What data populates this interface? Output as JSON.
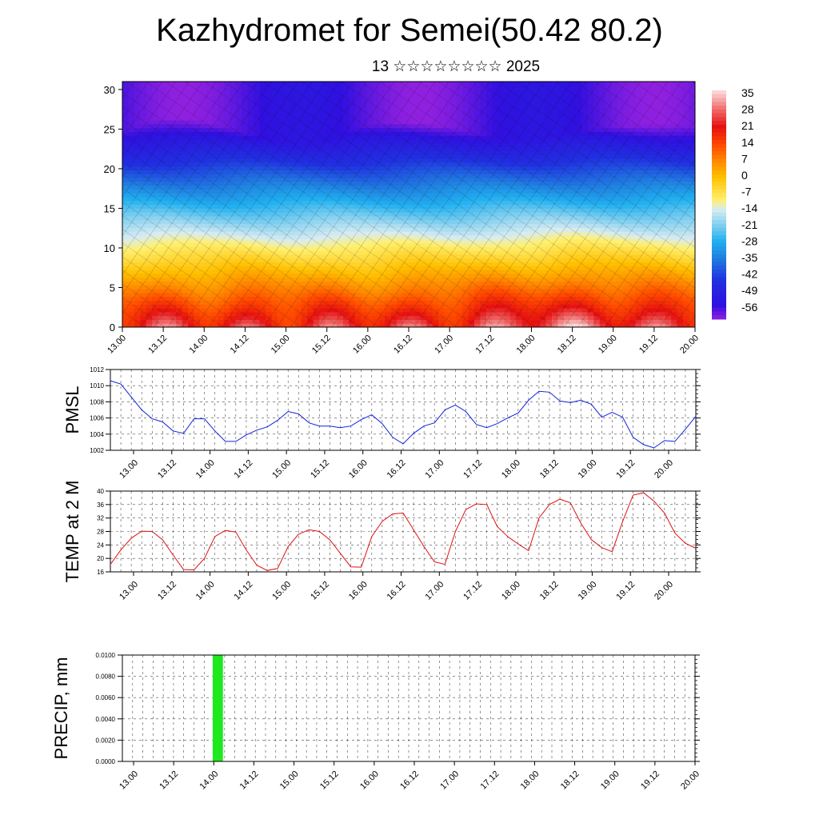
{
  "title": "Kazhydromet for Semei(50.42 80.2)",
  "subtitle": "13 ☆☆☆☆☆☆☆☆ 2025",
  "colors": {
    "pmsl_line": "#1020e0",
    "temp_line": "#e01010",
    "precip_bar": "#1ee81e"
  },
  "chart_data": [
    {
      "type": "heatmap",
      "name": "cross-section",
      "x_tick_labels": [
        "13.00",
        "13.12",
        "14.00",
        "14.12",
        "15.00",
        "15.12",
        "16.00",
        "16.12",
        "17.00",
        "17.12",
        "18.00",
        "18.12",
        "19.00",
        "19.12",
        "20.00"
      ],
      "y_ticks": [
        0,
        5,
        10,
        15,
        20,
        25,
        30
      ],
      "ylim": [
        0,
        31
      ],
      "colorbar_labels": [
        "35",
        "28",
        "21",
        "14",
        "7",
        "0",
        "-7",
        "-14",
        "-21",
        "-28",
        "-35",
        "-42",
        "-49",
        "-56"
      ],
      "colorscale": [
        {
          "v": 38,
          "c": "#fce0e0"
        },
        {
          "v": 30,
          "c": "#f07070"
        },
        {
          "v": 22,
          "c": "#e61010"
        },
        {
          "v": 14,
          "c": "#ff4a00"
        },
        {
          "v": 7,
          "c": "#ff8a00"
        },
        {
          "v": 0,
          "c": "#ffc000"
        },
        {
          "v": -10,
          "c": "#fff070"
        },
        {
          "v": -14,
          "c": "#d8ecf2"
        },
        {
          "v": -21,
          "c": "#80cff0"
        },
        {
          "v": -28,
          "c": "#20b0f0"
        },
        {
          "v": -35,
          "c": "#2080e0"
        },
        {
          "v": -45,
          "c": "#2030e0"
        },
        {
          "v": -56,
          "c": "#3010e0"
        },
        {
          "v": -62,
          "c": "#9020e0"
        }
      ]
    },
    {
      "type": "line",
      "name": "pmsl",
      "ylabel": "PMSL",
      "ylim": [
        1002,
        1012
      ],
      "y_ticks": [
        "1002",
        "1004",
        "1006",
        "1008",
        "1010",
        "1012"
      ],
      "x_tick_labels": [
        "13.00",
        "13.12",
        "14.00",
        "14.12",
        "15.00",
        "15.12",
        "16.00",
        "16.12",
        "17.00",
        "17.12",
        "18.00",
        "18.12",
        "19.00",
        "19.12",
        "20.00"
      ],
      "x": [
        0,
        3,
        6,
        9,
        12,
        15,
        18,
        21,
        24,
        27,
        30,
        33,
        36,
        39,
        42,
        45,
        48,
        51,
        54,
        57,
        60,
        63,
        66,
        69,
        72,
        75,
        78,
        81,
        84,
        87,
        90,
        93,
        96,
        99,
        102,
        105,
        108,
        111,
        114,
        117,
        120,
        123,
        126,
        129,
        132,
        135,
        138,
        141,
        144,
        147,
        150,
        153,
        156,
        159,
        162,
        165,
        168
      ],
      "values": [
        1010.6,
        1010.2,
        1008.6,
        1007.0,
        1005.9,
        1005.5,
        1004.4,
        1004.1,
        1005.9,
        1005.9,
        1004.4,
        1003.1,
        1003.1,
        1003.9,
        1004.5,
        1004.9,
        1005.7,
        1006.8,
        1006.5,
        1005.4,
        1005.0,
        1005.0,
        1004.8,
        1005.0,
        1005.8,
        1006.4,
        1005.3,
        1003.6,
        1002.8,
        1004.1,
        1005.0,
        1005.4,
        1007.0,
        1007.6,
        1006.8,
        1005.2,
        1004.8,
        1005.3,
        1006.0,
        1006.6,
        1008.2,
        1009.3,
        1009.2,
        1008.1,
        1007.9,
        1008.2,
        1007.7,
        1006.1,
        1006.7,
        1006.1,
        1003.6,
        1002.7,
        1002.3,
        1003.2,
        1003.1,
        1004.6,
        1006.2
      ]
    },
    {
      "type": "line",
      "name": "temp",
      "ylabel": "TEMP at 2 M",
      "ylim": [
        16,
        40
      ],
      "y_ticks": [
        "16",
        "20",
        "24",
        "28",
        "32",
        "36",
        "40"
      ],
      "x_tick_labels": [
        "13.00",
        "13.12",
        "14.00",
        "14.12",
        "15.00",
        "15.12",
        "16.00",
        "16.12",
        "17.00",
        "17.12",
        "18.00",
        "18.12",
        "19.00",
        "19.12",
        "20.00"
      ],
      "x": [
        0,
        3,
        6,
        9,
        12,
        15,
        18,
        21,
        24,
        27,
        30,
        33,
        36,
        39,
        42,
        45,
        48,
        51,
        54,
        57,
        60,
        63,
        66,
        69,
        72,
        75,
        78,
        81,
        84,
        87,
        90,
        93,
        96,
        99,
        102,
        105,
        108,
        111,
        114,
        117,
        120,
        123,
        126,
        129,
        132,
        135,
        138,
        141,
        144,
        147,
        150,
        153,
        156,
        159,
        162,
        165,
        168
      ],
      "values": [
        18.2,
        22.5,
        26.0,
        28.1,
        28.0,
        25.5,
        21.0,
        16.7,
        16.6,
        20.0,
        26.5,
        28.3,
        27.8,
        22.5,
        18.0,
        16.4,
        17.0,
        23.5,
        27.2,
        28.5,
        28.0,
        25.5,
        21.5,
        17.5,
        17.4,
        26.5,
        31.0,
        33.2,
        33.5,
        28.5,
        23.5,
        19.0,
        18.2,
        28.0,
        34.5,
        36.2,
        36.0,
        29.5,
        26.5,
        24.3,
        22.3,
        32.0,
        36.0,
        37.6,
        36.5,
        30.5,
        25.6,
        23.2,
        22.0,
        31.0,
        38.8,
        39.5,
        37.0,
        33.5,
        27.5,
        24.5,
        23.0
      ]
    },
    {
      "type": "bar",
      "name": "precip",
      "ylabel": "PRECIP, mm",
      "ylim": [
        0,
        0.01
      ],
      "y_ticks": [
        "0.0000",
        "0.0020",
        "0.0040",
        "0.0060",
        "0.0080",
        "0.0100"
      ],
      "x_tick_labels": [
        "13.00",
        "13.12",
        "14.00",
        "14.12",
        "15.00",
        "15.12",
        "16.00",
        "16.12",
        "17.00",
        "17.12",
        "18.00",
        "18.12",
        "19.00",
        "19.12",
        "20.00"
      ],
      "bars": [
        {
          "x_start": 26.5,
          "x_end": 29.5,
          "value": 0.01
        }
      ]
    }
  ]
}
